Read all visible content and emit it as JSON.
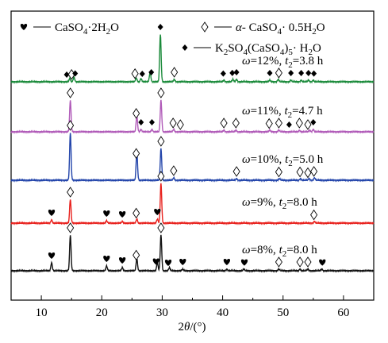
{
  "chart_data": {
    "type": "line",
    "xlabel_html": "2<tspan font-style='italic'>θ</tspan>/(°)",
    "xlabel": "2θ/(°)",
    "xlim": [
      5,
      65
    ],
    "xticks": [
      10,
      20,
      30,
      40,
      50,
      60
    ],
    "legend": [
      {
        "name": "CaSO4·2H2O",
        "marker": "heart"
      },
      {
        "name": "α-CaSO4·0.5H2O",
        "marker": "diamond-open"
      },
      {
        "name": "K2SO4(CaSO4)5·H2O",
        "marker": "diamond-filled"
      }
    ],
    "series": [
      {
        "name": "ω=12%, t2=3.8 h",
        "omega": "12%",
        "t2": "3.8 h",
        "color": "#1a8a3a",
        "peaks": [
          [
            14.7,
            4
          ],
          [
            15.4,
            6
          ],
          [
            25.7,
            5
          ],
          [
            26.5,
            4
          ],
          [
            28.0,
            12
          ],
          [
            29.7,
            60
          ],
          [
            32.0,
            3
          ],
          [
            40.2,
            2
          ],
          [
            41.7,
            3
          ],
          [
            42.3,
            3
          ],
          [
            47.8,
            2
          ],
          [
            49.2,
            3
          ],
          [
            51.3,
            2
          ],
          [
            53.0,
            2
          ],
          [
            54.2,
            2
          ],
          [
            55.0,
            2
          ]
        ],
        "markers": [
          [
            14.2,
            "diamond-filled"
          ],
          [
            15.0,
            "diamond-open"
          ],
          [
            15.6,
            "diamond-filled"
          ],
          [
            25.5,
            "diamond-open"
          ],
          [
            26.7,
            "diamond-filled"
          ],
          [
            28.2,
            "diamond-filled"
          ],
          [
            29.7,
            "diamond-filled"
          ],
          [
            32.0,
            "diamond-open"
          ],
          [
            40.1,
            "diamond-filled"
          ],
          [
            41.6,
            "diamond-filled"
          ],
          [
            42.3,
            "diamond-filled"
          ],
          [
            47.8,
            "diamond-filled"
          ],
          [
            49.3,
            "diamond-open"
          ],
          [
            51.3,
            "diamond-filled"
          ],
          [
            53.0,
            "diamond-filled"
          ],
          [
            54.2,
            "diamond-filled"
          ],
          [
            55.1,
            "diamond-filled"
          ]
        ]
      },
      {
        "name": "ω=11%, t2=4.7 h",
        "omega": "11%",
        "t2": "4.7 h",
        "color": "#b05ab8",
        "peaks": [
          [
            14.8,
            40
          ],
          [
            25.8,
            20
          ],
          [
            26.5,
            3
          ],
          [
            28.3,
            3
          ],
          [
            29.8,
            40
          ],
          [
            31.9,
            3
          ],
          [
            40.2,
            2
          ],
          [
            42.2,
            2
          ],
          [
            47.8,
            2
          ],
          [
            49.3,
            2
          ],
          [
            52.7,
            2
          ],
          [
            54.4,
            2
          ],
          [
            55.0,
            3
          ]
        ],
        "markers": [
          [
            14.8,
            "diamond-open"
          ],
          [
            25.7,
            "diamond-open"
          ],
          [
            26.5,
            "diamond-filled"
          ],
          [
            28.3,
            "diamond-filled"
          ],
          [
            29.8,
            "diamond-open"
          ],
          [
            31.8,
            "diamond-open"
          ],
          [
            33.0,
            "diamond-open"
          ],
          [
            40.2,
            "diamond-open"
          ],
          [
            42.2,
            "diamond-open"
          ],
          [
            47.7,
            "diamond-open"
          ],
          [
            49.3,
            "diamond-open"
          ],
          [
            51.0,
            "diamond-filled"
          ],
          [
            52.7,
            "diamond-open"
          ],
          [
            54.1,
            "diamond-open"
          ],
          [
            55.0,
            "diamond-filled"
          ]
        ]
      },
      {
        "name": "ω=10%, t2=5.0 h",
        "omega": "10%",
        "t2": "5.0 h",
        "color": "#2244aa",
        "peaks": [
          [
            14.8,
            60
          ],
          [
            25.8,
            35
          ],
          [
            29.8,
            40
          ],
          [
            31.9,
            3
          ],
          [
            42.3,
            2
          ],
          [
            49.4,
            2
          ],
          [
            52.9,
            2
          ],
          [
            54.3,
            2
          ],
          [
            55.2,
            3
          ]
        ],
        "markers": [
          [
            14.8,
            "diamond-open"
          ],
          [
            25.7,
            "diamond-open"
          ],
          [
            29.8,
            "diamond-open"
          ],
          [
            31.9,
            "diamond-open"
          ],
          [
            42.3,
            "diamond-open"
          ],
          [
            49.3,
            "diamond-open"
          ],
          [
            52.8,
            "diamond-open"
          ],
          [
            54.1,
            "diamond-open"
          ],
          [
            55.1,
            "diamond-open"
          ]
        ]
      },
      {
        "name": "ω=9%, t2=8.0 h",
        "omega": "9%",
        "t2": "8.0 h",
        "color": "#e8201c",
        "peaks": [
          [
            11.7,
            4
          ],
          [
            14.8,
            30
          ],
          [
            20.8,
            3
          ],
          [
            23.4,
            2
          ],
          [
            25.8,
            5
          ],
          [
            29.2,
            5
          ],
          [
            29.8,
            50
          ],
          [
            55.2,
            2
          ]
        ],
        "markers": [
          [
            11.7,
            "heart"
          ],
          [
            14.8,
            "diamond-open"
          ],
          [
            20.8,
            "heart"
          ],
          [
            23.4,
            "heart"
          ],
          [
            25.7,
            "diamond-open"
          ],
          [
            29.2,
            "heart"
          ],
          [
            29.8,
            "diamond-open"
          ],
          [
            55.1,
            "diamond-open"
          ]
        ]
      },
      {
        "name": "ω=8%, t2=8.0 h",
        "omega": "8%",
        "t2": "8.0 h",
        "color": "#111111",
        "peaks": [
          [
            11.7,
            10
          ],
          [
            14.8,
            45
          ],
          [
            20.8,
            6
          ],
          [
            23.4,
            4
          ],
          [
            25.8,
            15
          ],
          [
            29.2,
            10
          ],
          [
            29.8,
            45
          ],
          [
            31.2,
            4
          ],
          [
            33.4,
            2
          ],
          [
            40.7,
            2
          ],
          [
            43.5,
            2
          ],
          [
            49.3,
            2
          ],
          [
            52.8,
            2
          ],
          [
            54.1,
            2
          ],
          [
            56.4,
            2
          ]
        ],
        "markers": [
          [
            11.7,
            "heart"
          ],
          [
            14.8,
            "diamond-open"
          ],
          [
            20.8,
            "heart"
          ],
          [
            23.4,
            "heart"
          ],
          [
            25.7,
            "diamond-open"
          ],
          [
            29.0,
            "heart"
          ],
          [
            29.8,
            "diamond-open"
          ],
          [
            31.0,
            "heart"
          ],
          [
            33.4,
            "heart"
          ],
          [
            40.7,
            "heart"
          ],
          [
            43.6,
            "heart"
          ],
          [
            49.3,
            "diamond-open"
          ],
          [
            52.8,
            "diamond-open"
          ],
          [
            54.1,
            "diamond-open"
          ],
          [
            56.5,
            "heart"
          ]
        ]
      }
    ]
  }
}
